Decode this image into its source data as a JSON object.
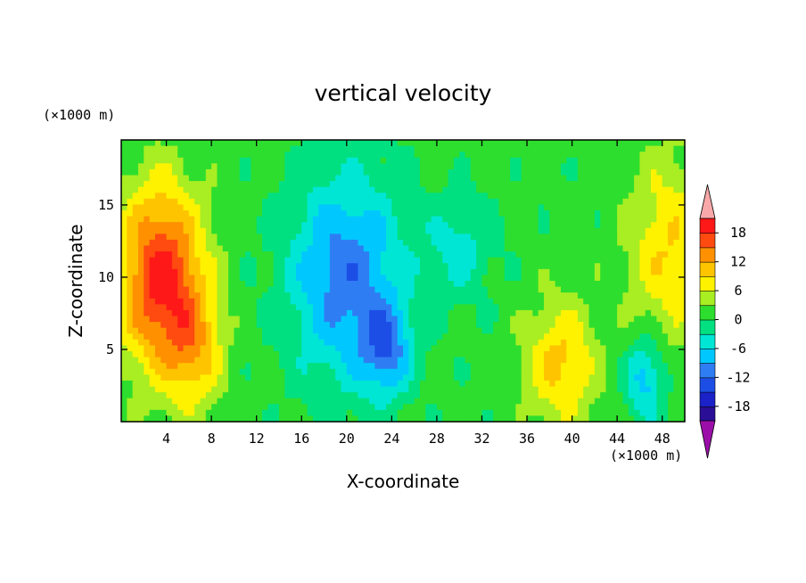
{
  "chart_data": {
    "type": "heatmap",
    "title": "vertical velocity",
    "xlabel": "X-coordinate",
    "ylabel": "Z-coordinate",
    "x_unit": "(×1000 m)",
    "y_unit": "(×1000 m)",
    "xlim": [
      0,
      50
    ],
    "ylim": [
      0,
      19.5
    ],
    "x_ticks": [
      4,
      8,
      12,
      16,
      20,
      24,
      28,
      32,
      36,
      40,
      44,
      48
    ],
    "y_ticks": [
      5,
      10,
      15
    ],
    "colorbar": {
      "tick_labels": [
        "18",
        "12",
        "6",
        "0",
        "-6",
        "-12",
        "-18"
      ],
      "tick_values": [
        18,
        12,
        6,
        0,
        -6,
        -12,
        -18
      ],
      "levels": [
        -21,
        -18,
        -15,
        -12,
        -9,
        -6,
        -3,
        0,
        3,
        6,
        9,
        12,
        15,
        18,
        21
      ],
      "colors": [
        "#7a1fa3",
        "#2a0f96",
        "#1b22c8",
        "#1c4ee6",
        "#2f7df3",
        "#00c8ff",
        "#00e6d5",
        "#00e080",
        "#2ede2e",
        "#a8ee22",
        "#fff200",
        "#ffc400",
        "#ff9000",
        "#ff4a10",
        "#ff1818",
        "#ee0000"
      ],
      "extend_colors": {
        "low": "#9b0fa8",
        "high": "#f8a8a8"
      }
    },
    "features": [
      {
        "kind": "updraft",
        "x": 3.5,
        "z": 10,
        "sx": 2.6,
        "sz": 4.5,
        "peak": 18
      },
      {
        "kind": "updraft",
        "x": 6.5,
        "z": 5,
        "sx": 1.8,
        "sz": 3.0,
        "peak": 8
      },
      {
        "kind": "downdraft",
        "x": 20,
        "z": 10,
        "sx": 3.5,
        "sz": 5.0,
        "peak": -12
      },
      {
        "kind": "downdraft",
        "x": 23.5,
        "z": 5,
        "sx": 1.5,
        "sz": 2.2,
        "peak": -10
      },
      {
        "kind": "downdraft",
        "x": 30,
        "z": 12,
        "sx": 2.2,
        "sz": 2.5,
        "peak": -5
      },
      {
        "kind": "updraft",
        "x": 39,
        "z": 4,
        "sx": 2.2,
        "sz": 3.0,
        "peak": 9
      },
      {
        "kind": "downdraft",
        "x": 46.5,
        "z": 3,
        "sx": 1.2,
        "sz": 2.0,
        "peak": -9
      },
      {
        "kind": "updraft",
        "x": 48.5,
        "z": 12,
        "sx": 2.5,
        "sz": 4.5,
        "peak": 8
      }
    ]
  }
}
